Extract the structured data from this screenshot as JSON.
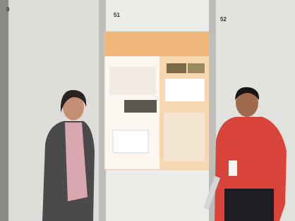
{
  "panels": [
    {
      "label": "0"
    },
    {
      "label": "51"
    },
    {
      "label": "52"
    }
  ]
}
